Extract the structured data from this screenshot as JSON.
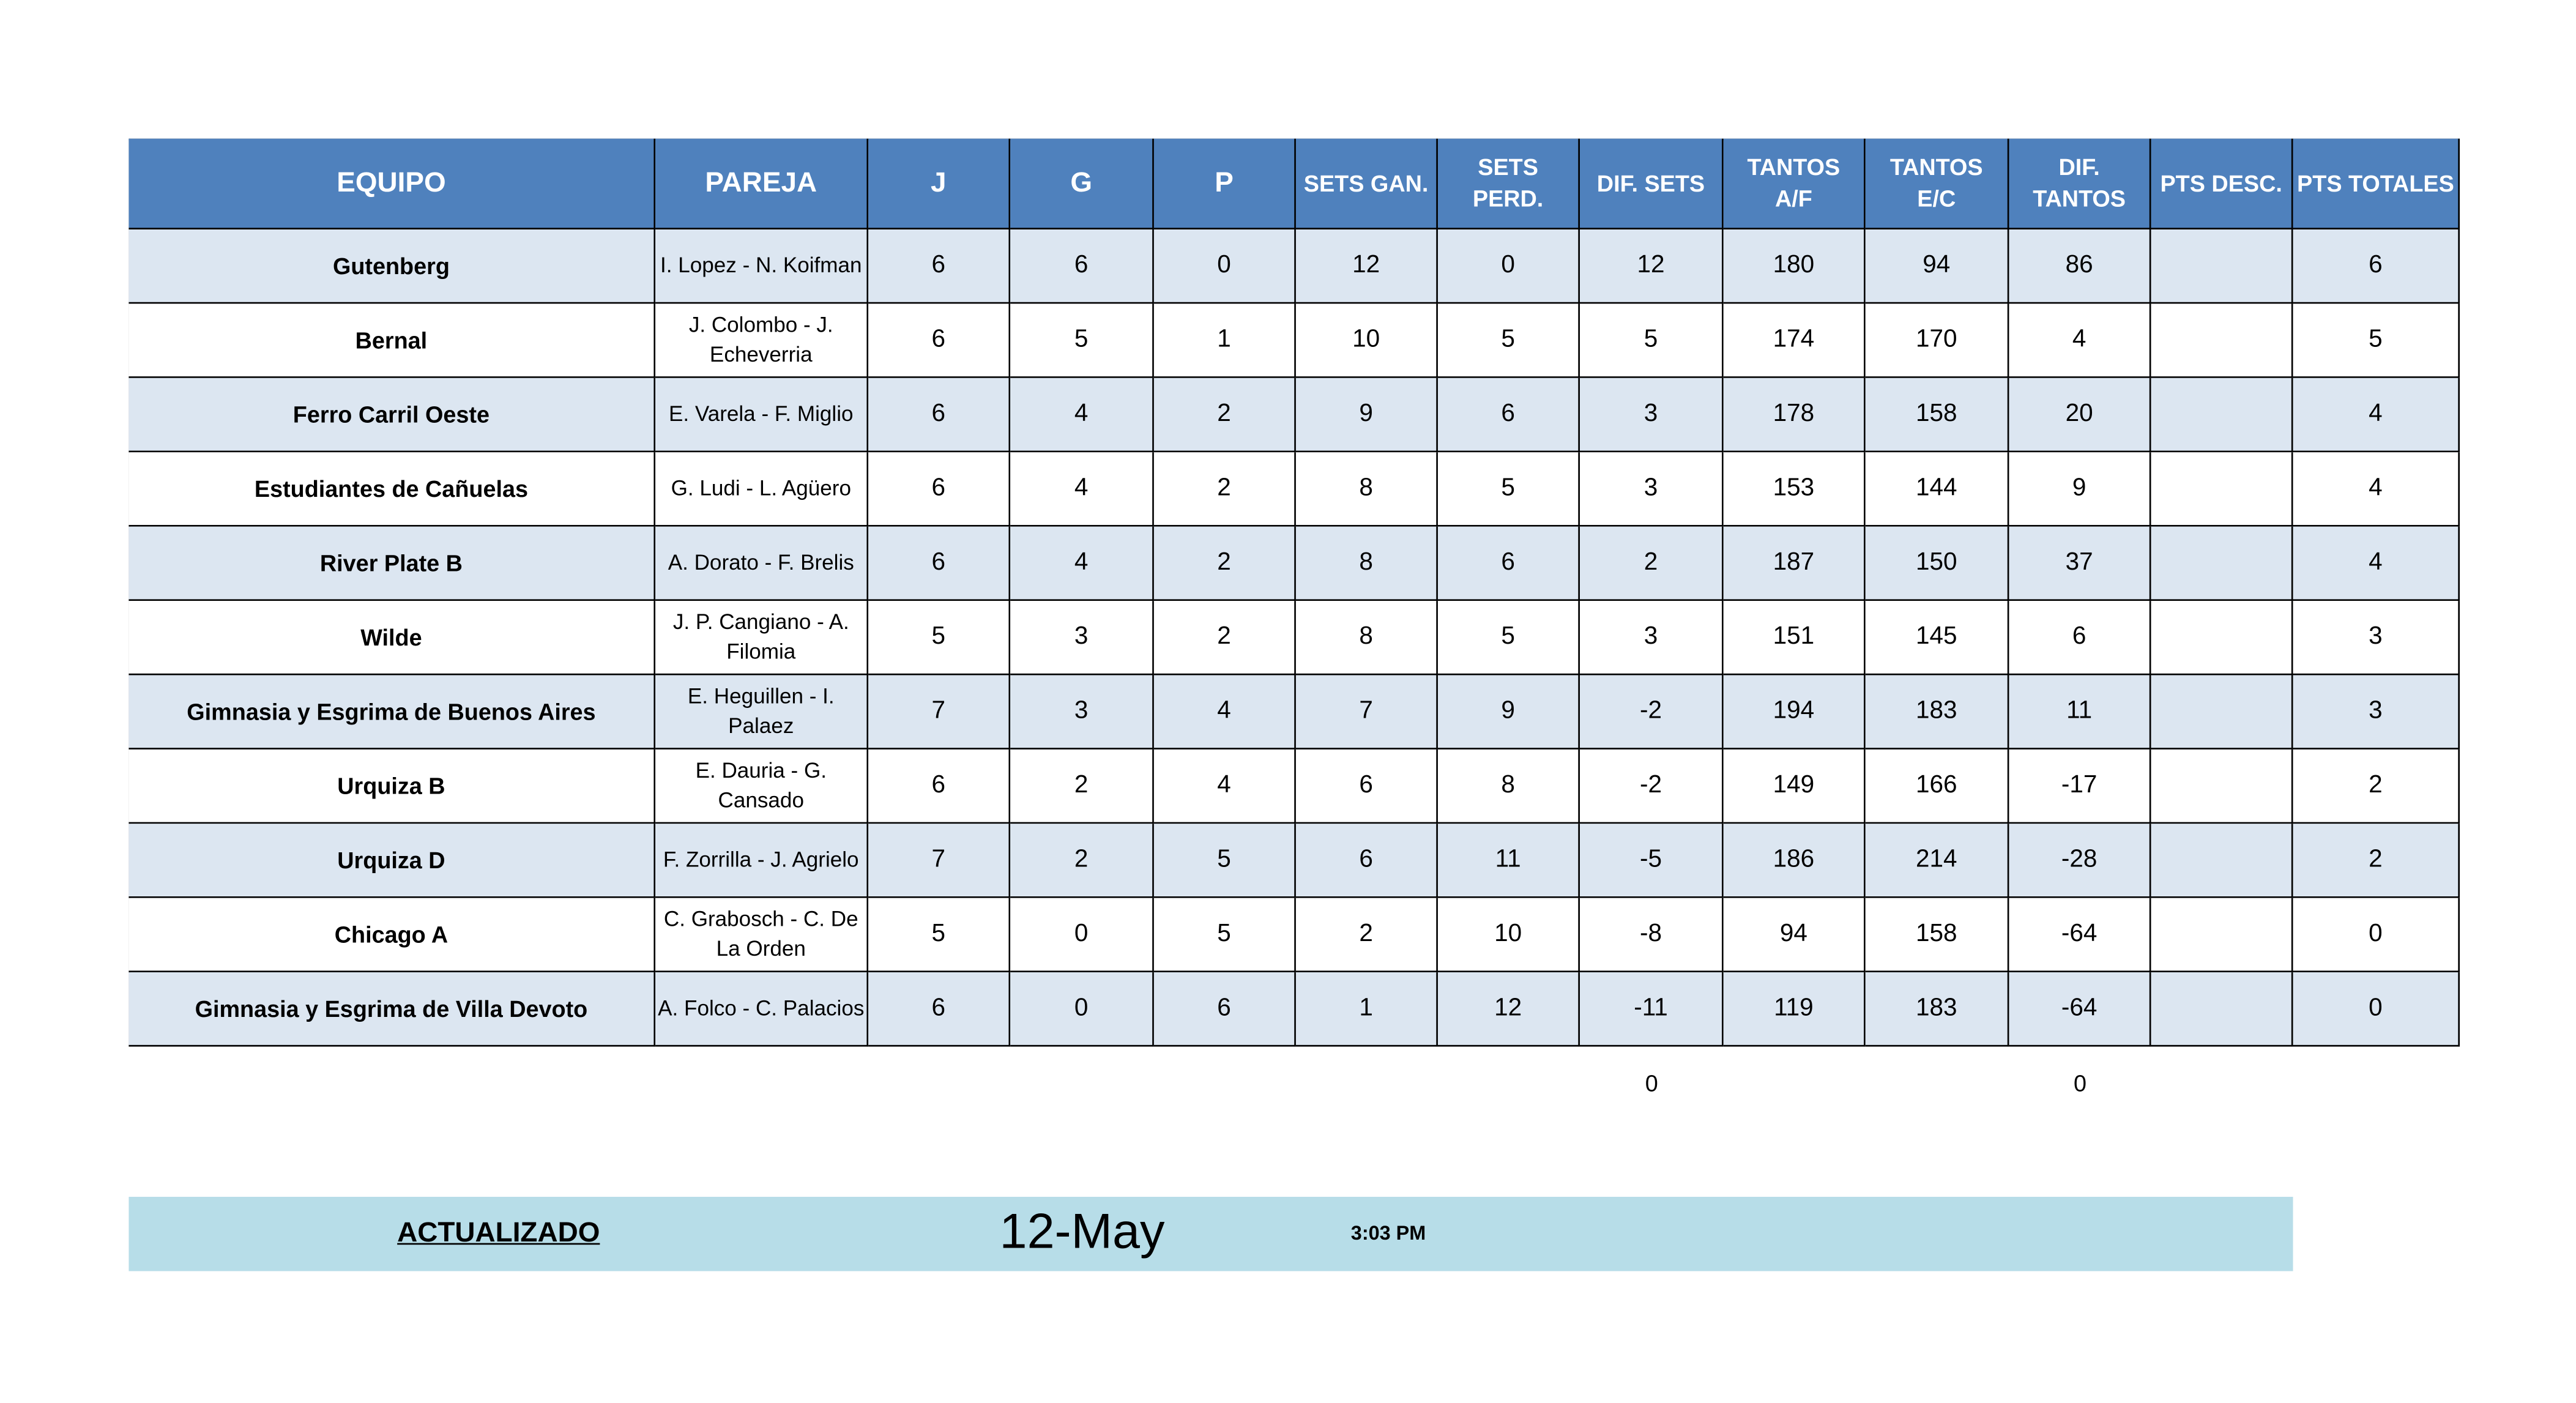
{
  "table": {
    "header": [
      "EQUIPO",
      "PAREJA",
      "J",
      "G",
      "P",
      "SETS GAN.",
      "SETS PERD.",
      "DIF. SETS",
      "TANTOS A/F",
      "TANTOS E/C",
      "DIF. TANTOS",
      "PTS DESC.",
      "PTS TOTALES"
    ],
    "rows": [
      [
        "Gutenberg",
        "I. Lopez - N. Koifman",
        6,
        6,
        0,
        12,
        0,
        12,
        180,
        94,
        86,
        null,
        6
      ],
      [
        "Bernal",
        "J. Colombo - J. Echeverria",
        6,
        5,
        1,
        10,
        5,
        5,
        174,
        170,
        4,
        null,
        5
      ],
      [
        "Ferro Carril Oeste",
        "E. Varela - F. Miglio",
        6,
        4,
        2,
        9,
        6,
        3,
        178,
        158,
        20,
        null,
        4
      ],
      [
        "Estudiantes de Cañuelas",
        "G. Ludi - L. Agüero",
        6,
        4,
        2,
        8,
        5,
        3,
        153,
        144,
        9,
        null,
        4
      ],
      [
        "River Plate B",
        "A. Dorato - F. Brelis",
        6,
        4,
        2,
        8,
        6,
        2,
        187,
        150,
        37,
        null,
        4
      ],
      [
        "Wilde",
        "J. P. Cangiano - A. Filomia",
        5,
        3,
        2,
        8,
        5,
        3,
        151,
        145,
        6,
        null,
        3
      ],
      [
        "Gimnasia y Esgrima de Buenos Aires",
        "E. Heguillen - I. Palaez",
        7,
        3,
        4,
        7,
        9,
        -2,
        194,
        183,
        11,
        null,
        3
      ],
      [
        "Urquiza B",
        "E. Dauria - G. Cansado",
        6,
        2,
        4,
        6,
        8,
        -2,
        149,
        166,
        -17,
        null,
        2
      ],
      [
        "Urquiza D",
        "F. Zorrilla - J. Agrielo",
        7,
        2,
        5,
        6,
        11,
        -5,
        186,
        214,
        -28,
        null,
        2
      ],
      [
        "Chicago A",
        "C. Grabosch - C. De La Orden",
        5,
        0,
        5,
        2,
        10,
        -8,
        94,
        158,
        -64,
        null,
        0
      ],
      [
        "Gimnasia y Esgrima de Villa Devoto",
        "A. Folco - C. Palacios",
        6,
        0,
        6,
        1,
        12,
        -11,
        119,
        183,
        -64,
        null,
        0
      ]
    ],
    "totals": {
      "dif_sets": 0,
      "dif_tantos": 0
    }
  },
  "footer": {
    "label": "ACTUALIZADO",
    "date": "12-May",
    "time": "3:03 PM"
  }
}
